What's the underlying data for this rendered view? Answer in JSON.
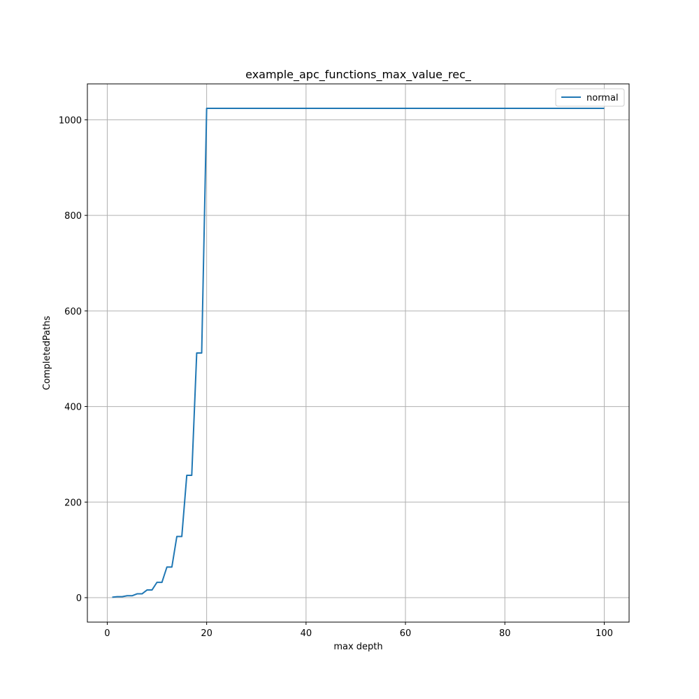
{
  "chart_data": {
    "type": "line",
    "title": "example_apc_functions_max_value_rec_",
    "xlabel": "max depth",
    "ylabel": "CompletedPaths",
    "xlim": [
      -4,
      105
    ],
    "ylim": [
      -51.2,
      1075.2
    ],
    "xticks": [
      0,
      20,
      40,
      60,
      80,
      100
    ],
    "yticks": [
      0,
      200,
      400,
      600,
      800,
      1000
    ],
    "grid": true,
    "legend_position": "top-right",
    "series": [
      {
        "name": "normal",
        "color": "#1f77b4",
        "x": [
          1,
          2,
          3,
          4,
          5,
          6,
          7,
          8,
          9,
          10,
          11,
          12,
          13,
          14,
          15,
          16,
          17,
          18,
          19,
          20,
          21,
          22,
          23,
          24,
          25,
          26,
          27,
          28,
          29,
          30,
          31,
          32,
          33,
          34,
          35,
          36,
          37,
          38,
          39,
          40,
          41,
          42,
          43,
          44,
          45,
          46,
          47,
          48,
          49,
          50,
          51,
          52,
          53,
          54,
          55,
          56,
          57,
          58,
          59,
          60,
          61,
          62,
          63,
          64,
          65,
          66,
          67,
          68,
          69,
          70,
          71,
          72,
          73,
          74,
          75,
          76,
          77,
          78,
          79,
          80,
          81,
          82,
          83,
          84,
          85,
          86,
          87,
          88,
          89,
          90,
          91,
          92,
          93,
          94,
          95,
          96,
          97,
          98,
          99,
          100
        ],
        "y": [
          1,
          2,
          2,
          4,
          4,
          8,
          8,
          16,
          16,
          32,
          32,
          64,
          64,
          128,
          128,
          256,
          256,
          512,
          512,
          1024,
          1024,
          1024,
          1024,
          1024,
          1024,
          1024,
          1024,
          1024,
          1024,
          1024,
          1024,
          1024,
          1024,
          1024,
          1024,
          1024,
          1024,
          1024,
          1024,
          1024,
          1024,
          1024,
          1024,
          1024,
          1024,
          1024,
          1024,
          1024,
          1024,
          1024,
          1024,
          1024,
          1024,
          1024,
          1024,
          1024,
          1024,
          1024,
          1024,
          1024,
          1024,
          1024,
          1024,
          1024,
          1024,
          1024,
          1024,
          1024,
          1024,
          1024,
          1024,
          1024,
          1024,
          1024,
          1024,
          1024,
          1024,
          1024,
          1024,
          1024,
          1024,
          1024,
          1024,
          1024,
          1024,
          1024,
          1024,
          1024,
          1024,
          1024,
          1024,
          1024,
          1024,
          1024,
          1024,
          1024,
          1024,
          1024,
          1024,
          1024
        ]
      }
    ]
  }
}
